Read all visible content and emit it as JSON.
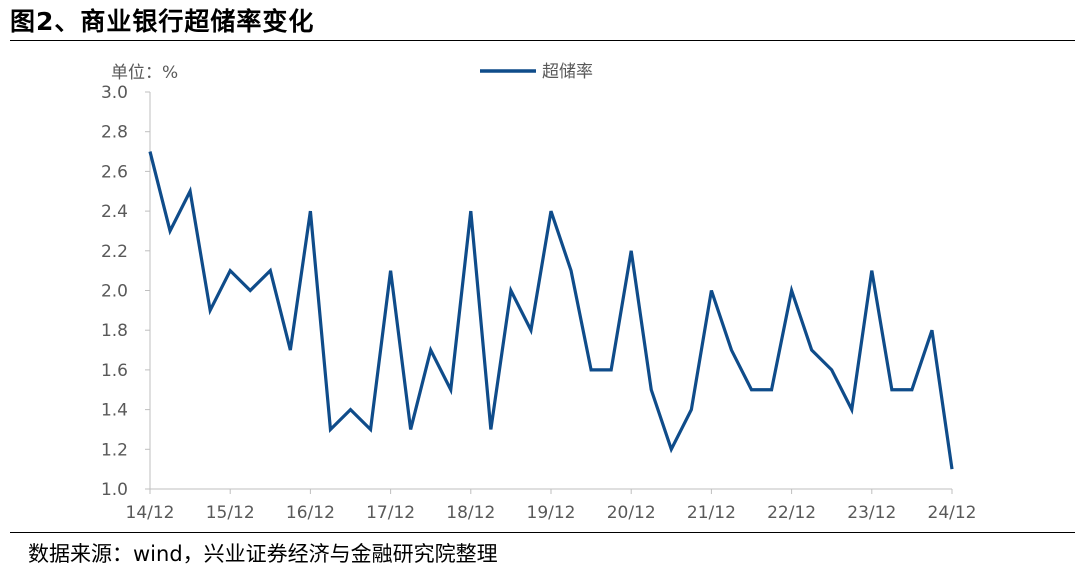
{
  "figure": {
    "title": "图2、商业银行超储率变化",
    "source": "数据来源：wind，兴业证券经济与金融研究院整理",
    "unit_label": "单位：%"
  },
  "chart_data": {
    "type": "line",
    "title": "",
    "xlabel": "",
    "ylabel": "单位：%",
    "ylim": [
      1.0,
      3.0
    ],
    "y_ticks": [
      "1.0",
      "1.2",
      "1.4",
      "1.6",
      "1.8",
      "2.0",
      "2.2",
      "2.4",
      "2.6",
      "2.8",
      "3.0"
    ],
    "x_ticks": [
      "14/12",
      "15/12",
      "16/12",
      "17/12",
      "18/12",
      "19/12",
      "20/12",
      "21/12",
      "22/12",
      "23/12",
      "24/12"
    ],
    "grid": false,
    "legend_position": "top-center",
    "colors": {
      "series": "#0f4c8a",
      "axis": "#bfbfbf",
      "text": "#595959"
    },
    "series": [
      {
        "name": "超储率",
        "values": [
          2.7,
          2.3,
          2.5,
          1.9,
          2.1,
          2.0,
          2.1,
          1.7,
          2.4,
          1.3,
          1.4,
          1.3,
          2.1,
          1.3,
          1.7,
          1.5,
          2.4,
          1.3,
          2.0,
          1.8,
          2.4,
          2.1,
          1.6,
          1.6,
          2.2,
          1.5,
          1.2,
          1.4,
          2.0,
          1.7,
          1.5,
          1.5,
          2.0,
          1.7,
          1.6,
          1.4,
          2.1,
          1.5,
          1.5,
          1.8,
          1.1
        ]
      }
    ]
  }
}
